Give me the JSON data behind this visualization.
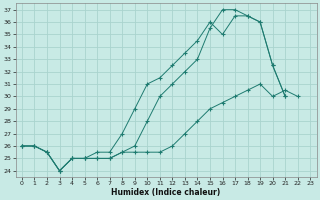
{
  "xlabel": "Humidex (Indice chaleur)",
  "xlim": [
    -0.5,
    23.5
  ],
  "ylim": [
    23.5,
    37.5
  ],
  "xticks": [
    0,
    1,
    2,
    3,
    4,
    5,
    6,
    7,
    8,
    9,
    10,
    11,
    12,
    13,
    14,
    15,
    16,
    17,
    18,
    19,
    20,
    21,
    22,
    23
  ],
  "yticks": [
    24,
    25,
    26,
    27,
    28,
    29,
    30,
    31,
    32,
    33,
    34,
    35,
    36,
    37
  ],
  "bg_color": "#c8eae5",
  "grid_color": "#aad4ce",
  "line_color": "#1e7b70",
  "line1_x": [
    0,
    1,
    2,
    3,
    4,
    5,
    6,
    7,
    8,
    9,
    10,
    11,
    12,
    13,
    14,
    15,
    16,
    17,
    18,
    19,
    20,
    21,
    22,
    23
  ],
  "line1_y": [
    26.0,
    26.0,
    25.5,
    24.0,
    25.0,
    25.0,
    25.0,
    25.0,
    25.5,
    25.5,
    25.5,
    25.5,
    26.0,
    27.0,
    28.0,
    29.0,
    29.5,
    30.0,
    30.5,
    31.0,
    30.0,
    30.5,
    30.0,
    null
  ],
  "line2_x": [
    0,
    1,
    2,
    3,
    4,
    5,
    6,
    7,
    8,
    9,
    10,
    11,
    12,
    13,
    14,
    15,
    16,
    17,
    18,
    19,
    20,
    21,
    22,
    23
  ],
  "line2_y": [
    26.0,
    26.0,
    25.5,
    24.0,
    25.0,
    25.0,
    25.5,
    25.5,
    27.0,
    29.0,
    31.0,
    31.5,
    32.5,
    33.5,
    34.5,
    36.0,
    35.0,
    36.5,
    36.5,
    36.0,
    32.5,
    30.0,
    null,
    null
  ],
  "line3_x": [
    0,
    1,
    2,
    3,
    4,
    5,
    6,
    7,
    8,
    9,
    10,
    11,
    12,
    13,
    14,
    15,
    16,
    17,
    18,
    19,
    20,
    21,
    22,
    23
  ],
  "line3_y": [
    26.0,
    26.0,
    25.5,
    24.0,
    25.0,
    25.0,
    25.0,
    25.0,
    25.5,
    26.0,
    28.0,
    30.0,
    31.0,
    32.0,
    33.0,
    35.5,
    37.0,
    37.0,
    36.5,
    36.0,
    32.5,
    30.0,
    null,
    null
  ]
}
